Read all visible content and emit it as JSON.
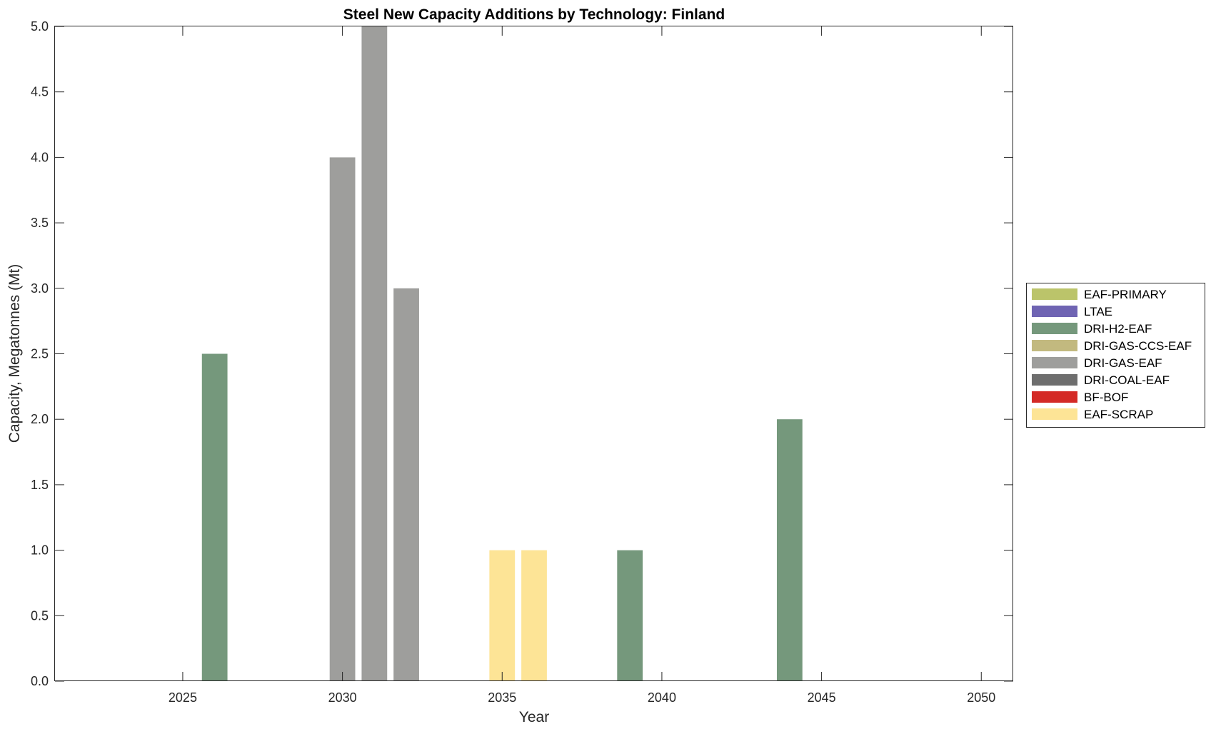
{
  "chart_data": {
    "type": "bar",
    "stacked": true,
    "title": "Steel New Capacity Additions by Technology: Finland",
    "xlabel": "Year",
    "ylabel": "Capacity, Megatonnes (Mt)",
    "xlim": [
      2021,
      2051
    ],
    "ylim": [
      0,
      5
    ],
    "xticks": [
      2025,
      2030,
      2035,
      2040,
      2045,
      2050
    ],
    "yticks": [
      0,
      0.5,
      1,
      1.5,
      2,
      2.5,
      3,
      3.5,
      4,
      4.5,
      5
    ],
    "ytick_labels": [
      "0.0",
      "0.5",
      "1.0",
      "1.5",
      "2.0",
      "2.5",
      "3.0",
      "3.5",
      "4.0",
      "4.5",
      "5.0"
    ],
    "grid": false,
    "legend_position": "outside-right",
    "x": [
      2022,
      2023,
      2024,
      2025,
      2026,
      2027,
      2028,
      2029,
      2030,
      2031,
      2032,
      2033,
      2034,
      2035,
      2036,
      2037,
      2038,
      2039,
      2040,
      2041,
      2042,
      2043,
      2044,
      2045,
      2046,
      2047,
      2048,
      2049,
      2050
    ],
    "series": [
      {
        "name": "EAF-PRIMARY",
        "color": "#BBC46A",
        "values": [
          0,
          0,
          0,
          0,
          0,
          0,
          0,
          0,
          0,
          0,
          0,
          0,
          0,
          0,
          0,
          0,
          0,
          0,
          0,
          0,
          0,
          0,
          0,
          0,
          0,
          0,
          0,
          0,
          0
        ]
      },
      {
        "name": "LTAE",
        "color": "#6F64B3",
        "values": [
          0,
          0,
          0,
          0,
          0,
          0,
          0,
          0,
          0,
          0,
          0,
          0,
          0,
          0,
          0,
          0,
          0,
          0,
          0,
          0,
          0,
          0,
          0,
          0,
          0,
          0,
          0,
          0,
          0
        ]
      },
      {
        "name": "DRI-H2-EAF",
        "color": "#75987C",
        "values": [
          0,
          0,
          0,
          0,
          2.5,
          0,
          0,
          0,
          0,
          0,
          0,
          0,
          0,
          0,
          0,
          0,
          0,
          1,
          0,
          0,
          0,
          0,
          2,
          0,
          0,
          0,
          0,
          0,
          0
        ]
      },
      {
        "name": "DRI-GAS-CCS-EAF",
        "color": "#C2B97F",
        "values": [
          0,
          0,
          0,
          0,
          0,
          0,
          0,
          0,
          0,
          0,
          0,
          0,
          0,
          0,
          0,
          0,
          0,
          0,
          0,
          0,
          0,
          0,
          0,
          0,
          0,
          0,
          0,
          0,
          0
        ]
      },
      {
        "name": "DRI-GAS-EAF",
        "color": "#9E9E9C",
        "values": [
          0,
          0,
          0,
          0,
          0,
          0,
          0,
          0,
          4,
          5,
          3,
          0,
          0,
          0,
          0,
          0,
          0,
          0,
          0,
          0,
          0,
          0,
          0,
          0,
          0,
          0,
          0,
          0,
          0
        ]
      },
      {
        "name": "DRI-COAL-EAF",
        "color": "#6E6E6E",
        "values": [
          0,
          0,
          0,
          0,
          0,
          0,
          0,
          0,
          0,
          0,
          0,
          0,
          0,
          0,
          0,
          0,
          0,
          0,
          0,
          0,
          0,
          0,
          0,
          0,
          0,
          0,
          0,
          0,
          0
        ]
      },
      {
        "name": "BF-BOF",
        "color": "#D42A26",
        "values": [
          0,
          0,
          0,
          0,
          0,
          0,
          0,
          0,
          0,
          0,
          0,
          0,
          0,
          0,
          0,
          0,
          0,
          0,
          0,
          0,
          0,
          0,
          0,
          0,
          0,
          0,
          0,
          0,
          0
        ]
      },
      {
        "name": "EAF-SCRAP",
        "color": "#FDE496",
        "values": [
          0,
          0,
          0,
          0,
          0,
          0,
          0,
          0,
          0,
          0,
          0,
          0,
          0,
          1,
          1,
          0,
          0,
          0,
          0,
          0,
          0,
          0,
          0,
          0,
          0,
          0,
          0,
          0,
          0
        ]
      }
    ]
  }
}
